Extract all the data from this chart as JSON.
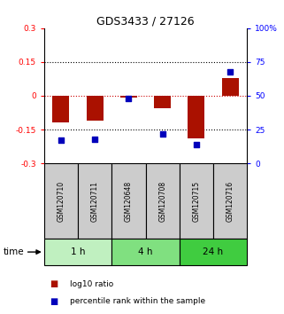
{
  "title": "GDS3433 / 27126",
  "samples": [
    "GSM120710",
    "GSM120711",
    "GSM120648",
    "GSM120708",
    "GSM120715",
    "GSM120716"
  ],
  "log10_ratio": [
    -0.12,
    -0.11,
    -0.008,
    -0.055,
    -0.19,
    0.08
  ],
  "percentile_rank": [
    17,
    18,
    48,
    22,
    14,
    68
  ],
  "ylim_left": [
    -0.3,
    0.3
  ],
  "ylim_right": [
    0,
    100
  ],
  "yticks_left": [
    -0.3,
    -0.15,
    0,
    0.15,
    0.3
  ],
  "yticks_right": [
    0,
    25,
    50,
    75,
    100
  ],
  "ytick_labels_left": [
    "-0.3",
    "-0.15",
    "0",
    "0.15",
    "0.3"
  ],
  "ytick_labels_right": [
    "0",
    "25",
    "50",
    "75",
    "100%"
  ],
  "groups": [
    {
      "label": "1 h",
      "indices": [
        0,
        1
      ],
      "color": "#c0f0c0"
    },
    {
      "label": "4 h",
      "indices": [
        2,
        3
      ],
      "color": "#80e080"
    },
    {
      "label": "24 h",
      "indices": [
        4,
        5
      ],
      "color": "#40cc40"
    }
  ],
  "bar_color": "#aa1100",
  "square_color": "#0000bb",
  "hline_color": "#cc0000",
  "bg_color": "#ffffff",
  "sample_bg": "#cccccc",
  "legend_items": [
    "log10 ratio",
    "percentile rank within the sample"
  ],
  "bar_width": 0.5,
  "square_size": 25
}
